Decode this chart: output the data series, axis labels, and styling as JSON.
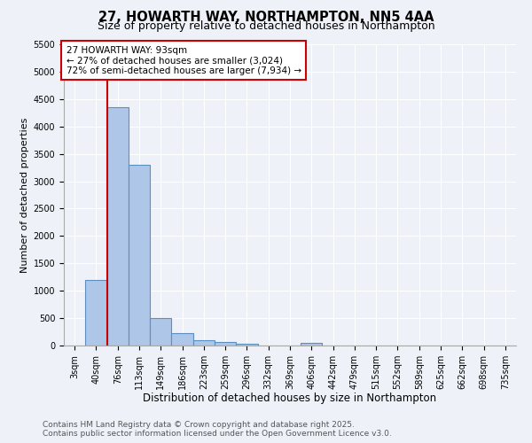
{
  "title": "27, HOWARTH WAY, NORTHAMPTON, NN5 4AA",
  "subtitle": "Size of property relative to detached houses in Northampton",
  "xlabel": "Distribution of detached houses by size in Northampton",
  "ylabel": "Number of detached properties",
  "categories": [
    "3sqm",
    "40sqm",
    "76sqm",
    "113sqm",
    "149sqm",
    "186sqm",
    "223sqm",
    "259sqm",
    "296sqm",
    "332sqm",
    "369sqm",
    "406sqm",
    "442sqm",
    "479sqm",
    "515sqm",
    "552sqm",
    "589sqm",
    "625sqm",
    "662sqm",
    "698sqm",
    "735sqm"
  ],
  "values": [
    0,
    1200,
    4350,
    3300,
    500,
    220,
    90,
    60,
    30,
    5,
    0,
    50,
    0,
    0,
    0,
    0,
    0,
    0,
    0,
    0,
    0
  ],
  "bar_color": "#aec6e8",
  "bar_edgecolor": "#5a8fc0",
  "bar_linewidth": 0.8,
  "vline_x": 1.5,
  "vline_color": "#cc0000",
  "vline_linewidth": 1.5,
  "annotation_text": "27 HOWARTH WAY: 93sqm\n← 27% of detached houses are smaller (3,024)\n72% of semi-detached houses are larger (7,934) →",
  "annotation_box_edgecolor": "#cc0000",
  "annotation_box_facecolor": "#ffffff",
  "annotation_fontsize": 7.5,
  "ylim": [
    0,
    5500
  ],
  "yticks": [
    0,
    500,
    1000,
    1500,
    2000,
    2500,
    3000,
    3500,
    4000,
    4500,
    5000,
    5500
  ],
  "bg_color": "#eef2f8",
  "grid_color": "#ffffff",
  "footer_line1": "Contains HM Land Registry data © Crown copyright and database right 2025.",
  "footer_line2": "Contains public sector information licensed under the Open Government Licence v3.0.",
  "title_fontsize": 10.5,
  "subtitle_fontsize": 9,
  "xlabel_fontsize": 8.5,
  "ylabel_fontsize": 8,
  "tick_fontsize": 7,
  "footer_fontsize": 6.5
}
